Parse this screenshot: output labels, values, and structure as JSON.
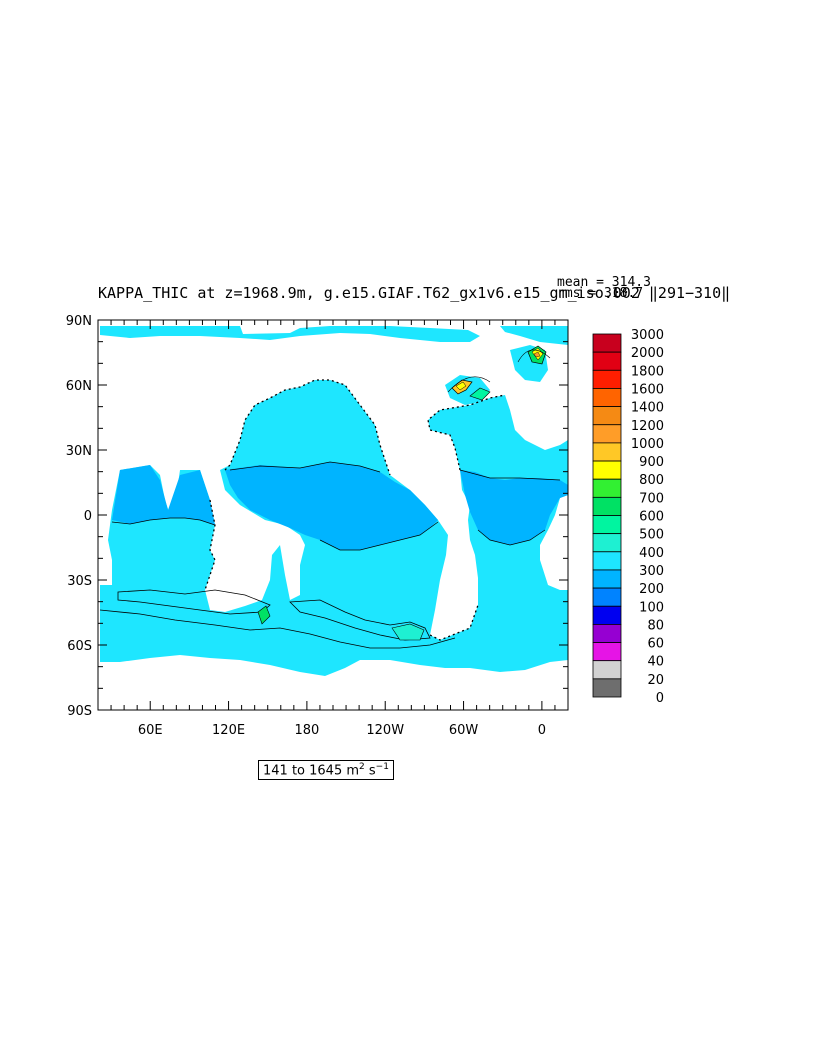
{
  "title": "KAPPA_THIC at z=1968.9m, g.e15.GIAF.T62_gx1v6.e15_gm_iso.002 ‖291−310‖",
  "stats": {
    "mean": "mean = 314.3",
    "rms": "rms = 318.7"
  },
  "y_axis": {
    "ticks": [
      "90N",
      "60N",
      "30N",
      "0",
      "30S",
      "60S",
      "90S"
    ]
  },
  "x_axis": {
    "ticks": [
      "60E",
      "120E",
      "180",
      "120W",
      "60W",
      "0"
    ]
  },
  "range_label": {
    "prefix": "141 to 1645 m",
    "sup1": "2",
    "mid": " s",
    "sup2": "−1"
  },
  "colorbar": {
    "labels": [
      "3000",
      "2000",
      "1800",
      "1600",
      "1400",
      "1200",
      "1000",
      "900",
      "800",
      "700",
      "600",
      "500",
      "400",
      "300",
      "200",
      "100",
      "80",
      "60",
      "40",
      "20",
      "0"
    ],
    "colors": [
      "#c8001e",
      "#e10014",
      "#ff1e00",
      "#ff6400",
      "#f58a14",
      "#ff9d28",
      "#ffc826",
      "#ffff00",
      "#32f032",
      "#00e164",
      "#00f5a0",
      "#1ef0d2",
      "#1ee6ff",
      "#00b4ff",
      "#0083ff",
      "#0000f0",
      "#9600d2",
      "#e614e6",
      "#d2d2d2",
      "#6e6e6e"
    ]
  },
  "map_colors": {
    "ocean_main": "#1ee6ff",
    "ocean_band": "#00b4ff",
    "land": "#ffffff"
  }
}
